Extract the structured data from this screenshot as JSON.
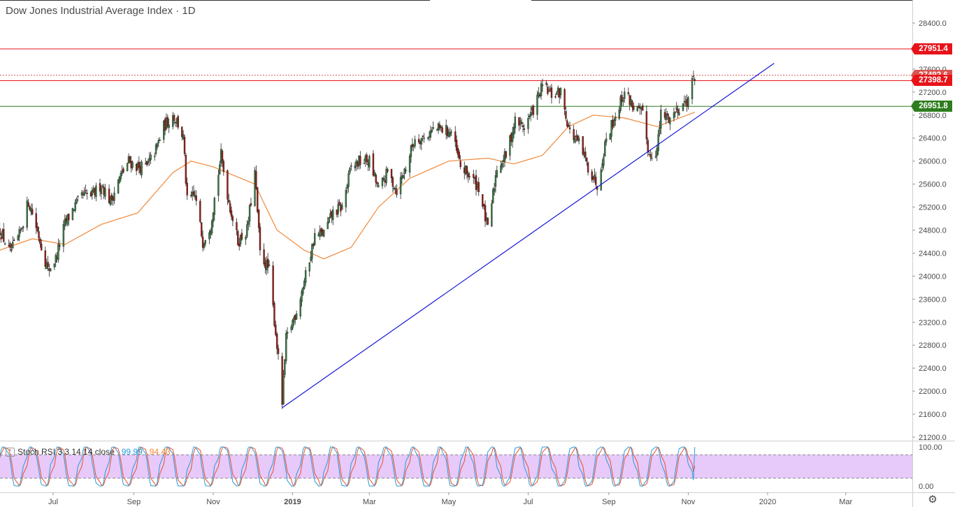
{
  "header": {
    "title": "Dow Jones Industrial Average Index · 1D"
  },
  "chart_data": {
    "type": "candlestick",
    "title": "Dow Jones Industrial Average Index · 1D",
    "interval": "1D",
    "ylim": [
      21000,
      28700
    ],
    "price_ticks": [
      "28400.0",
      "28000.0",
      "27600.0",
      "27200.0",
      "26800.0",
      "26400.0",
      "26000.0",
      "25600.0",
      "25200.0",
      "24800.0",
      "24400.0",
      "24000.0",
      "23600.0",
      "23200.0",
      "22800.0",
      "22400.0",
      "22000.0",
      "21600.0",
      "21200.0"
    ],
    "time_ticks": [
      "Jul",
      "Sep",
      "Nov",
      "2019",
      "Mar",
      "May",
      "Jul",
      "Sep",
      "Nov",
      "2020",
      "Mar"
    ],
    "close_path": [
      [
        "2018-05-21",
        24800
      ],
      [
        "2018-05-29",
        24400
      ],
      [
        "2018-06-05",
        24700
      ],
      [
        "2018-06-12",
        25300
      ],
      [
        "2018-06-15",
        25100
      ],
      [
        "2018-06-20",
        24700
      ],
      [
        "2018-06-27",
        24100
      ],
      [
        "2018-07-03",
        24300
      ],
      [
        "2018-07-10",
        24900
      ],
      [
        "2018-07-17",
        25200
      ],
      [
        "2018-07-24",
        25400
      ],
      [
        "2018-07-31",
        25400
      ],
      [
        "2018-08-07",
        25600
      ],
      [
        "2018-08-14",
        25300
      ],
      [
        "2018-08-21",
        25700
      ],
      [
        "2018-08-28",
        26000
      ],
      [
        "2018-09-04",
        25900
      ],
      [
        "2018-09-11",
        25900
      ],
      [
        "2018-09-18",
        26200
      ],
      [
        "2018-09-24",
        26600
      ],
      [
        "2018-10-01",
        26800
      ],
      [
        "2018-10-04",
        26700
      ],
      [
        "2018-10-09",
        26400
      ],
      [
        "2018-10-12",
        25300
      ],
      [
        "2018-10-18",
        25400
      ],
      [
        "2018-10-24",
        24600
      ],
      [
        "2018-10-30",
        24900
      ],
      [
        "2018-11-07",
        26100
      ],
      [
        "2018-11-13",
        25300
      ],
      [
        "2018-11-20",
        24600
      ],
      [
        "2018-11-27",
        24800
      ],
      [
        "2018-12-03",
        25800
      ],
      [
        "2018-12-07",
        24400
      ],
      [
        "2018-12-14",
        24100
      ],
      [
        "2018-12-20",
        22800
      ],
      [
        "2018-12-24",
        21800
      ],
      [
        "2018-12-27",
        22900
      ],
      [
        "2019-01-04",
        23400
      ],
      [
        "2019-01-11",
        24000
      ],
      [
        "2019-01-18",
        24700
      ],
      [
        "2019-01-25",
        24750
      ],
      [
        "2019-02-01",
        25100
      ],
      [
        "2019-02-08",
        25200
      ],
      [
        "2019-02-15",
        25900
      ],
      [
        "2019-02-22",
        26000
      ],
      [
        "2019-03-01",
        26000
      ],
      [
        "2019-03-08",
        25500
      ],
      [
        "2019-03-15",
        25800
      ],
      [
        "2019-03-22",
        25500
      ],
      [
        "2019-03-29",
        25900
      ],
      [
        "2019-04-05",
        26400
      ],
      [
        "2019-04-12",
        26400
      ],
      [
        "2019-04-19",
        26550
      ],
      [
        "2019-04-26",
        26550
      ],
      [
        "2019-05-03",
        26500
      ],
      [
        "2019-05-10",
        25900
      ],
      [
        "2019-05-17",
        25750
      ],
      [
        "2019-05-24",
        25550
      ],
      [
        "2019-05-31",
        24800
      ],
      [
        "2019-06-07",
        25900
      ],
      [
        "2019-06-14",
        26100
      ],
      [
        "2019-06-21",
        26700
      ],
      [
        "2019-06-28",
        26600
      ],
      [
        "2019-07-05",
        26900
      ],
      [
        "2019-07-12",
        27300
      ],
      [
        "2019-07-19",
        27150
      ],
      [
        "2019-07-26",
        27200
      ],
      [
        "2019-08-02",
        26500
      ],
      [
        "2019-08-09",
        26300
      ],
      [
        "2019-08-16",
        25900
      ],
      [
        "2019-08-23",
        25600
      ],
      [
        "2019-08-30",
        26400
      ],
      [
        "2019-09-06",
        26800
      ],
      [
        "2019-09-13",
        27200
      ],
      [
        "2019-09-20",
        26950
      ],
      [
        "2019-09-27",
        26800
      ],
      [
        "2019-10-02",
        26100
      ],
      [
        "2019-10-08",
        26200
      ],
      [
        "2019-10-11",
        26800
      ],
      [
        "2019-10-18",
        26750
      ],
      [
        "2019-10-25",
        26950
      ],
      [
        "2019-10-31",
        27050
      ],
      [
        "2019-11-06",
        27490
      ]
    ],
    "ma_path": [
      [
        "2018-05-21",
        24450
      ],
      [
        "2018-06-15",
        24650
      ],
      [
        "2018-07-10",
        24550
      ],
      [
        "2018-08-07",
        24900
      ],
      [
        "2018-09-04",
        25100
      ],
      [
        "2018-10-01",
        25800
      ],
      [
        "2018-10-15",
        26000
      ],
      [
        "2018-11-01",
        25900
      ],
      [
        "2018-12-03",
        25600
      ],
      [
        "2018-12-20",
        24800
      ],
      [
        "2019-01-10",
        24450
      ],
      [
        "2019-01-25",
        24300
      ],
      [
        "2019-02-15",
        24500
      ],
      [
        "2019-03-08",
        25200
      ],
      [
        "2019-04-01",
        25700
      ],
      [
        "2019-05-01",
        26000
      ],
      [
        "2019-05-31",
        26050
      ],
      [
        "2019-06-20",
        25950
      ],
      [
        "2019-07-12",
        26100
      ],
      [
        "2019-08-01",
        26600
      ],
      [
        "2019-08-20",
        26800
      ],
      [
        "2019-09-13",
        26750
      ],
      [
        "2019-10-08",
        26600
      ],
      [
        "2019-11-06",
        26850
      ]
    ],
    "trendline": {
      "from": [
        "2018-12-24",
        21712
      ],
      "to": [
        "2020-01-06",
        27700
      ]
    },
    "levels": [
      {
        "value": "27951.4",
        "color": "#e8131a",
        "style": "solid"
      },
      {
        "value": "27492.6",
        "color": "#d9534f",
        "style": "dotted"
      },
      {
        "value": "27398.7",
        "color": "#e8131a",
        "style": "solid"
      },
      {
        "value": "26951.8",
        "color": "#2e7d1e",
        "style": "solid"
      }
    ],
    "stoch_rsi": {
      "label": "Stoch RSI 3 3 14 14 close",
      "k": "99.99",
      "d": "94.43",
      "ylim": [
        0,
        100
      ],
      "ticks": [
        "100.00",
        "0.00"
      ],
      "band_upper": 80,
      "band_lower": 20
    }
  },
  "colors": {
    "up": "#3a7d44",
    "down": "#9e1b14",
    "ma": "#f0883a",
    "trendline": "#1818d8",
    "stoch_k": "#2a9bd8",
    "stoch_d": "#e8502a",
    "stoch_band": "#e7c9fa"
  },
  "icons": {
    "settings": "gear-icon",
    "collapse": "chevron-icon"
  }
}
